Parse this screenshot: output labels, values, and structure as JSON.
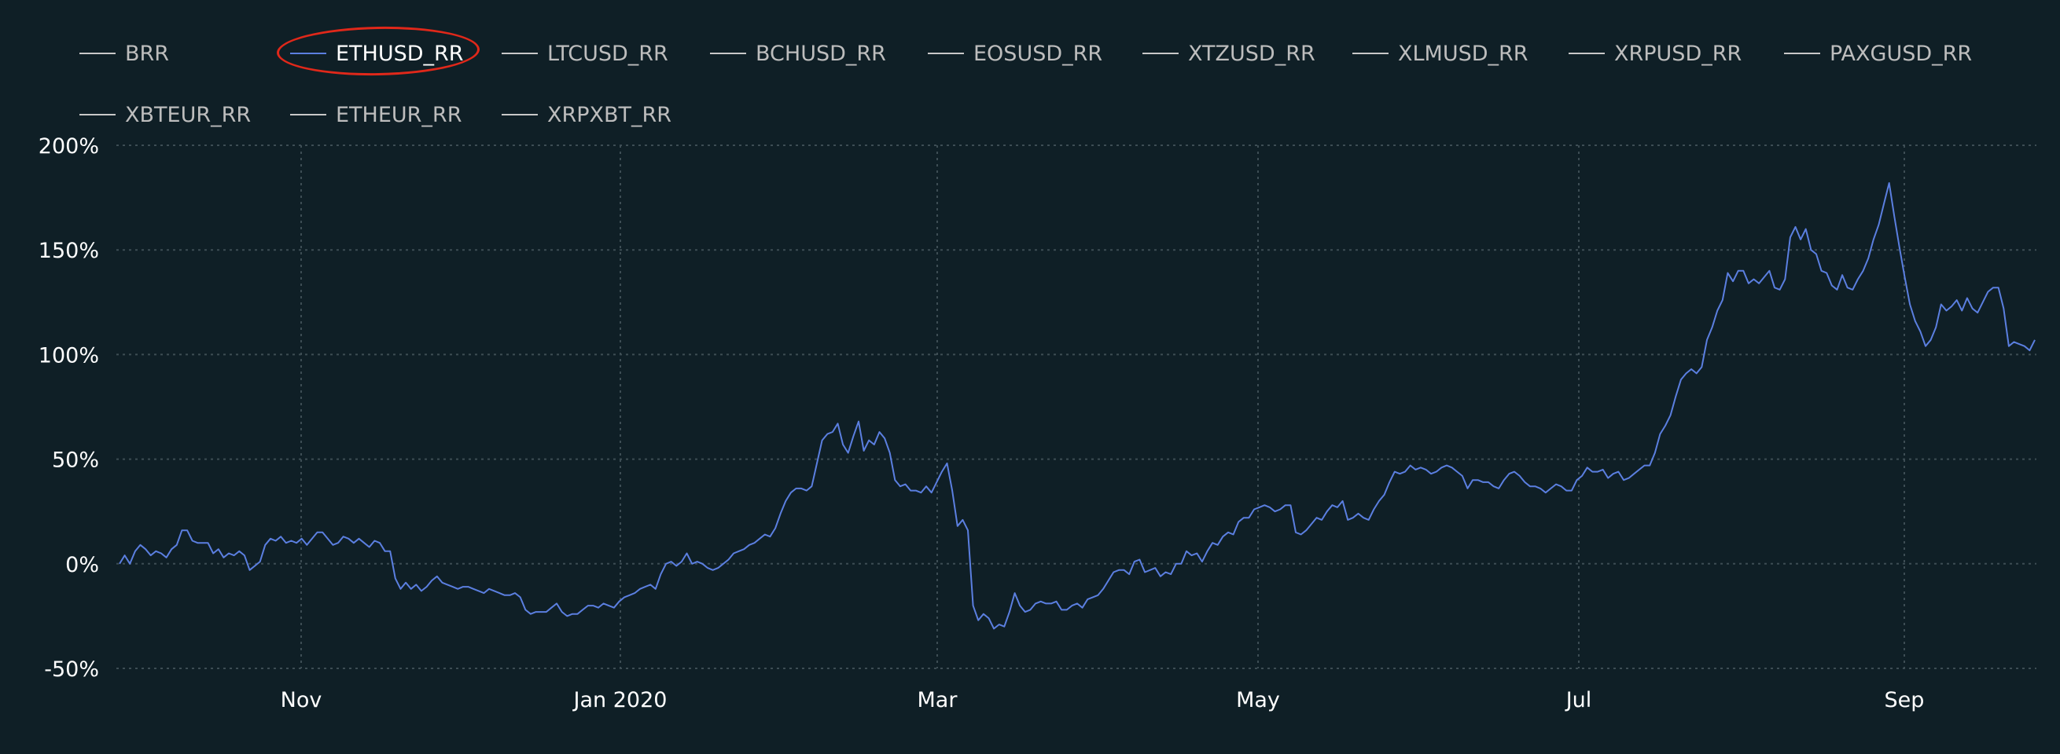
{
  "legend": {
    "items": [
      {
        "label": "BRR",
        "active": false
      },
      {
        "label": "ETHUSD_RR",
        "active": true
      },
      {
        "label": "LTCUSD_RR",
        "active": false
      },
      {
        "label": "BCHUSD_RR",
        "active": false
      },
      {
        "label": "EOSUSD_RR",
        "active": false
      },
      {
        "label": "XTZUSD_RR",
        "active": false
      },
      {
        "label": "XLMUSD_RR",
        "active": false
      },
      {
        "label": "XRPUSD_RR",
        "active": false
      },
      {
        "label": "PAXGUSD_RR",
        "active": false
      },
      {
        "label": "XBTEUR_RR",
        "active": false
      },
      {
        "label": "ETHEUR_RR",
        "active": false
      },
      {
        "label": "XRPXBT_RR",
        "active": false
      }
    ],
    "highlighted": "ETHUSD_RR"
  },
  "colors": {
    "background": "#0f1f26",
    "series": "#5b7fe0",
    "grid": "#3d4d54",
    "highlight_annotation": "#e0281a",
    "inactive_legend_text": "#bdbdbd",
    "active_legend_text": "#ffffff"
  },
  "chart_data": {
    "type": "line",
    "title": "",
    "xlabel": "",
    "ylabel": "",
    "ylim": [
      -50,
      200
    ],
    "y_ticks": [
      "200%",
      "150%",
      "100%",
      "50%",
      "0%",
      "-50%"
    ],
    "y_tick_values": [
      200,
      150,
      100,
      50,
      0,
      -50
    ],
    "x_ticks": [
      "Nov",
      "Jan 2020",
      "Mar",
      "May",
      "Jul",
      "Sep"
    ],
    "grid": true,
    "legend_position": "top",
    "series": [
      {
        "name": "ETHUSD_RR",
        "color": "#5b7fe0",
        "x_approx_dates": "mid-Sep 2019 to late Sep 2020",
        "values": [
          0,
          4,
          0,
          6,
          9,
          7,
          4,
          6,
          5,
          3,
          7,
          9,
          16,
          16,
          11,
          10,
          10,
          10,
          5,
          7,
          3,
          5,
          4,
          6,
          4,
          -3,
          -1,
          1,
          9,
          12,
          11,
          13,
          10,
          11,
          10,
          12,
          9,
          12,
          15,
          15,
          12,
          9,
          10,
          13,
          12,
          10,
          12,
          10,
          8,
          11,
          10,
          6,
          6,
          -7,
          -12,
          -9,
          -12,
          -10,
          -13,
          -11,
          -8,
          -6,
          -9,
          -10,
          -11,
          -12,
          -11,
          -11,
          -12,
          -13,
          -14,
          -12,
          -13,
          -14,
          -15,
          -15,
          -14,
          -16,
          -22,
          -24,
          -23,
          -23,
          -23,
          -21,
          -19,
          -23,
          -25,
          -24,
          -24,
          -22,
          -20,
          -20,
          -21,
          -19,
          -20,
          -21,
          -18,
          -16,
          -15,
          -14,
          -12,
          -11,
          -10,
          -12,
          -5,
          0,
          1,
          -1,
          1,
          5,
          0,
          1,
          0,
          -2,
          -3,
          -2,
          0,
          2,
          5,
          6,
          7,
          9,
          10,
          12,
          14,
          13,
          17,
          24,
          30,
          34,
          36,
          36,
          35,
          37,
          48,
          59,
          62,
          63,
          67,
          57,
          53,
          61,
          68,
          54,
          59,
          57,
          63,
          60,
          53,
          40,
          37,
          38,
          35,
          35,
          34,
          37,
          34,
          39,
          44,
          48,
          35,
          18,
          21,
          16,
          -20,
          -27,
          -24,
          -26,
          -31,
          -29,
          -30,
          -23,
          -14,
          -20,
          -23,
          -22,
          -19,
          -18,
          -19,
          -19,
          -18,
          -22,
          -22,
          -20,
          -19,
          -21,
          -17,
          -16,
          -15,
          -12,
          -8,
          -4,
          -3,
          -3,
          -5,
          1,
          2,
          -4,
          -3,
          -2,
          -6,
          -4,
          -5,
          0,
          0,
          6,
          4,
          5,
          1,
          6,
          10,
          9,
          13,
          15,
          14,
          20,
          22,
          22,
          26,
          27,
          28,
          27,
          25,
          26,
          28,
          28,
          15,
          14,
          16,
          19,
          22,
          21,
          25,
          28,
          27,
          30,
          21,
          22,
          24,
          22,
          21,
          26,
          30,
          33,
          39,
          44,
          43,
          44,
          47,
          45,
          46,
          45,
          43,
          44,
          46,
          47,
          46,
          44,
          42,
          36,
          40,
          40,
          39,
          39,
          37,
          36,
          40,
          43,
          44,
          42,
          39,
          37,
          37,
          36,
          34,
          36,
          38,
          37,
          35,
          35,
          40,
          42,
          46,
          44,
          44,
          45,
          41,
          43,
          44,
          40,
          41,
          43,
          45,
          47,
          47,
          53,
          62,
          66,
          71,
          80,
          88,
          91,
          93,
          91,
          94,
          107,
          113,
          121,
          126,
          139,
          135,
          140,
          140,
          134,
          136,
          134,
          137,
          140,
          132,
          131,
          136,
          156,
          161,
          155,
          160,
          150,
          148,
          140,
          139,
          133,
          131,
          138,
          132,
          131,
          136,
          140,
          146,
          155,
          162,
          172,
          182,
          166,
          151,
          137,
          124,
          116,
          111,
          104,
          107,
          113,
          124,
          121,
          123,
          126,
          121,
          127,
          122,
          120,
          125,
          130,
          132,
          132,
          122,
          104,
          106,
          105,
          104,
          102,
          107
        ]
      }
    ]
  }
}
